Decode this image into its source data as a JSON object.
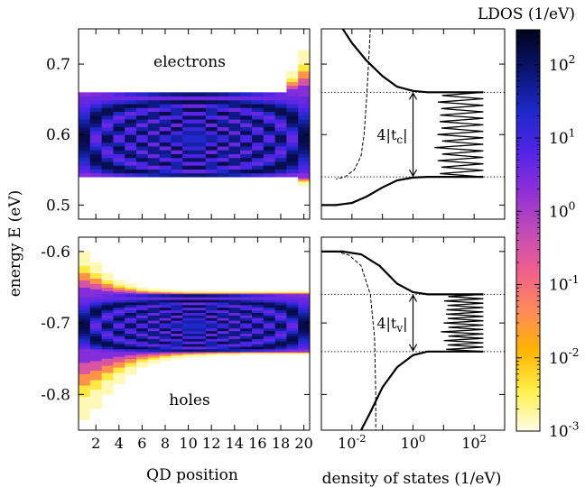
{
  "chart_data": {
    "type": "heatmap",
    "colorbar": {
      "title": "LDOS (1/eV)",
      "scale": "log",
      "range": [
        0.001,
        300
      ],
      "tick_labels": [
        {
          "base": "10",
          "exp": "2",
          "value": 100
        },
        {
          "base": "10",
          "exp": "1",
          "value": 10
        },
        {
          "base": "10",
          "exp": "0",
          "value": 1
        },
        {
          "base": "10",
          "exp": "-1",
          "value": 0.1
        },
        {
          "base": "10",
          "exp": "-2",
          "value": 0.01
        },
        {
          "base": "10",
          "exp": "-3",
          "value": 0.001
        }
      ],
      "colors": [
        "#fffde8",
        "#fff04a",
        "#ffb300",
        "#ff8a5a",
        "#ef5f8f",
        "#c04ab8",
        "#8e2fd8",
        "#5024e8",
        "#1c28c8",
        "#0a1470",
        "#02031a"
      ]
    },
    "ylabel": "energy E (eV)",
    "panels": {
      "ldos_electrons": {
        "label": "electrons",
        "xlabel": "QD position",
        "x_ticks": [
          "2",
          "4",
          "6",
          "8",
          "10",
          "12",
          "14",
          "16",
          "18",
          "20"
        ],
        "xlim": [
          0.5,
          20.5
        ],
        "ylim": [
          0.48,
          0.75
        ],
        "y_ticks": [
          "0.7",
          "0.6",
          "0.5"
        ],
        "y_tick_values": [
          0.7,
          0.6,
          0.5
        ],
        "band": [
          0.54,
          0.66
        ],
        "tail_top_end": [
          0.62,
          0.62,
          0.62,
          0.62,
          0.62,
          0.62,
          0.62,
          0.62,
          0.62,
          0.62,
          0.62,
          0.62,
          0.62,
          0.622,
          0.625,
          0.63,
          0.64,
          0.66,
          0.69,
          0.72
        ],
        "tail_bottom_end": [
          0.598,
          0.598,
          0.598,
          0.598,
          0.598,
          0.598,
          0.598,
          0.598,
          0.598,
          0.598,
          0.598,
          0.597,
          0.596,
          0.595,
          0.593,
          0.59,
          0.585,
          0.575,
          0.555,
          0.528
        ]
      },
      "ldos_holes": {
        "label": "holes",
        "xlabel": "QD position",
        "x_ticks": [
          "2",
          "4",
          "6",
          "8",
          "10",
          "12",
          "14",
          "16",
          "18",
          "20"
        ],
        "xlim": [
          0.5,
          20.5
        ],
        "ylim": [
          -0.85,
          -0.58
        ],
        "y_ticks": [
          "-0.6",
          "-0.7",
          "-0.8"
        ],
        "y_tick_values": [
          -0.6,
          -0.7,
          -0.8
        ],
        "band": [
          -0.74,
          -0.66
        ],
        "tail_top_end": [
          -0.6,
          -0.615,
          -0.63,
          -0.64,
          -0.645,
          -0.65,
          -0.652,
          -0.653,
          -0.654,
          -0.655,
          -0.655,
          -0.655,
          -0.655,
          -0.655,
          -0.655,
          -0.655,
          -0.655,
          -0.655,
          -0.655,
          -0.655
        ],
        "tail_bottom_end": [
          -0.835,
          -0.82,
          -0.8,
          -0.785,
          -0.772,
          -0.762,
          -0.757,
          -0.753,
          -0.75,
          -0.748,
          -0.747,
          -0.746,
          -0.745,
          -0.745,
          -0.744,
          -0.744,
          -0.744,
          -0.744,
          -0.744,
          -0.744
        ]
      },
      "dos_electrons": {
        "xlabel": "density of states (1/eV)",
        "x_scale": "log",
        "xlim": [
          0.001,
          1000
        ],
        "ylim": [
          0.48,
          0.75
        ],
        "x_ticks": [
          {
            "base": "10",
            "exp": "-2",
            "value": 0.01
          },
          {
            "base": "10",
            "exp": "0",
            "value": 1
          },
          {
            "base": "10",
            "exp": "2",
            "value": 100
          }
        ],
        "band_edges": [
          0.54,
          0.66
        ],
        "bandwidth_label": "4|t",
        "bandwidth_sub": "c",
        "solid_curve": [
          [
            0.001,
            0.5
          ],
          [
            0.003,
            0.5
          ],
          [
            0.01,
            0.503
          ],
          [
            0.03,
            0.512
          ],
          [
            0.1,
            0.525
          ],
          [
            0.3,
            0.535
          ],
          [
            1,
            0.539
          ],
          [
            3,
            0.54
          ],
          [
            10,
            0.54
          ],
          [
            200,
            0.54
          ]
        ],
        "solid_curve_upper": [
          [
            200,
            0.66
          ],
          [
            10,
            0.66
          ],
          [
            3,
            0.66
          ],
          [
            1,
            0.662
          ],
          [
            0.3,
            0.668
          ],
          [
            0.1,
            0.683
          ],
          [
            0.03,
            0.705
          ],
          [
            0.01,
            0.73
          ],
          [
            0.005,
            0.75
          ]
        ],
        "dashed_curve": [
          [
            0.04,
            0.75
          ],
          [
            0.035,
            0.7
          ],
          [
            0.03,
            0.65
          ],
          [
            0.025,
            0.6
          ],
          [
            0.02,
            0.57
          ],
          [
            0.012,
            0.55
          ],
          [
            0.006,
            0.54
          ],
          [
            0.003,
            0.537
          ]
        ],
        "oscillation_range": [
          [
            5,
            200
          ],
          [
            0.54,
            0.66
          ]
        ]
      },
      "dos_holes": {
        "xlabel": "density of states (1/eV)",
        "x_scale": "log",
        "xlim": [
          0.001,
          1000
        ],
        "ylim": [
          -0.85,
          -0.58
        ],
        "x_ticks": [
          {
            "base": "10",
            "exp": "-2",
            "value": 0.01
          },
          {
            "base": "10",
            "exp": "0",
            "value": 1
          },
          {
            "base": "10",
            "exp": "2",
            "value": 100
          }
        ],
        "band_edges": [
          -0.74,
          -0.66
        ],
        "bandwidth_label": "4|t",
        "bandwidth_sub": "v",
        "solid_curve": [
          [
            0.001,
            -0.6
          ],
          [
            0.005,
            -0.6
          ],
          [
            0.02,
            -0.604
          ],
          [
            0.08,
            -0.62
          ],
          [
            0.3,
            -0.645
          ],
          [
            1,
            -0.657
          ],
          [
            3,
            -0.66
          ],
          [
            200,
            -0.66
          ]
        ],
        "solid_curve_upper": [
          [
            200,
            -0.74
          ],
          [
            3,
            -0.74
          ],
          [
            1,
            -0.745
          ],
          [
            0.3,
            -0.762
          ],
          [
            0.1,
            -0.79
          ],
          [
            0.04,
            -0.825
          ],
          [
            0.02,
            -0.85
          ]
        ],
        "dashed_curve": [
          [
            0.003,
            -0.6
          ],
          [
            0.008,
            -0.605
          ],
          [
            0.02,
            -0.62
          ],
          [
            0.04,
            -0.66
          ],
          [
            0.055,
            -0.72
          ],
          [
            0.06,
            -0.8
          ],
          [
            0.06,
            -0.85
          ]
        ],
        "oscillation_range": [
          [
            8,
            200
          ],
          [
            -0.74,
            -0.66
          ]
        ]
      }
    }
  }
}
